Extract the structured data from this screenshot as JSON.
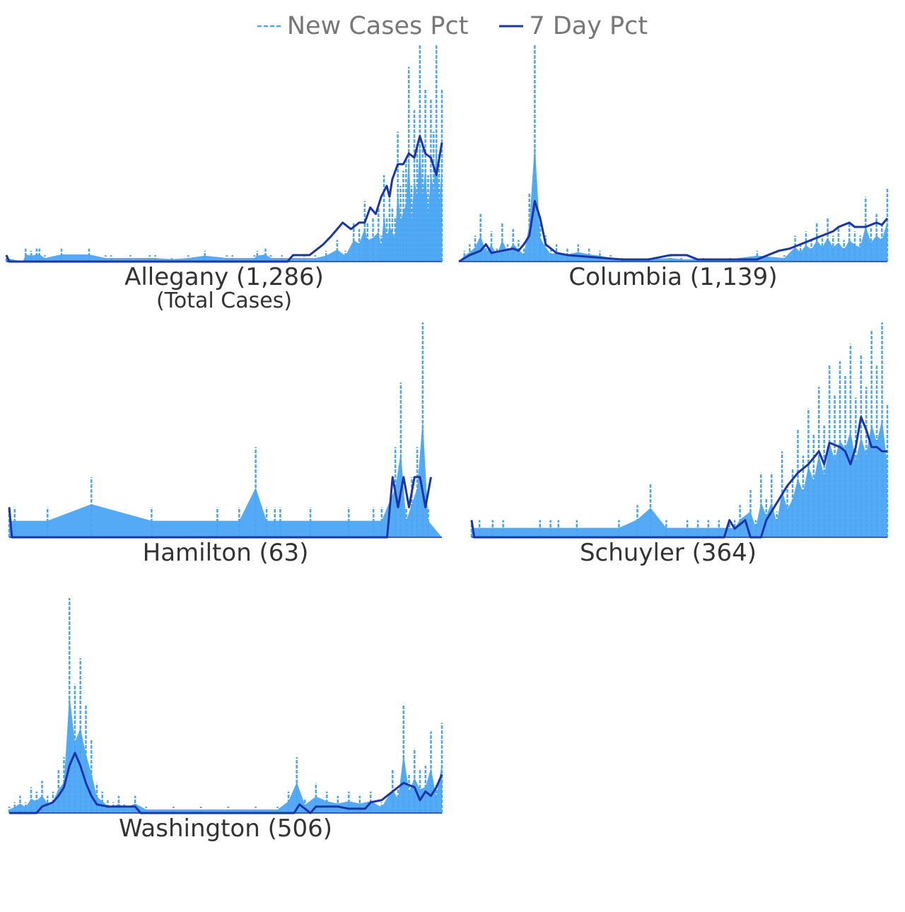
{
  "legend": {
    "new_cases_label": "New Cases Pct",
    "seven_day_label": "7 Day Pct"
  },
  "colors": {
    "new_cases": "#4aa6f0",
    "new_cases_fill": "#55aaf5",
    "seven_day": "#1a35a6",
    "text": "#333333",
    "legend_text": "#777777"
  },
  "chart_data": [
    {
      "type": "area",
      "title": "Allegany (1,286)",
      "subtitle": "(Total Cases)",
      "series": [
        {
          "name": "New Cases Pct"
        },
        {
          "name": "7 Day Pct"
        }
      ],
      "ylim": [
        0,
        100
      ],
      "peaks_new": [
        [
          0,
          3
        ],
        [
          6,
          0
        ],
        [
          7,
          6
        ],
        [
          9,
          5
        ],
        [
          11,
          6
        ],
        [
          12,
          6
        ],
        [
          14,
          3
        ],
        [
          20,
          6
        ],
        [
          30,
          6
        ],
        [
          36,
          3
        ],
        [
          38,
          3
        ],
        [
          45,
          3
        ],
        [
          52,
          3
        ],
        [
          54,
          3
        ],
        [
          60,
          2
        ],
        [
          66,
          3
        ],
        [
          72,
          5
        ],
        [
          80,
          3
        ],
        [
          82,
          3
        ],
        [
          90,
          3
        ],
        [
          91,
          5
        ],
        [
          94,
          6
        ],
        [
          96,
          3
        ],
        [
          100,
          3
        ],
        [
          104,
          3
        ],
        [
          108,
          3
        ],
        [
          112,
          3
        ],
        [
          116,
          5
        ],
        [
          120,
          10
        ],
        [
          123,
          5
        ],
        [
          126,
          18
        ],
        [
          128,
          15
        ],
        [
          130,
          28
        ],
        [
          131,
          18
        ],
        [
          133,
          20
        ],
        [
          135,
          25
        ],
        [
          136,
          12
        ],
        [
          137,
          40
        ],
        [
          138,
          20
        ],
        [
          139,
          30
        ],
        [
          140,
          25
        ],
        [
          141,
          20
        ],
        [
          142,
          60
        ],
        [
          143,
          35
        ],
        [
          144,
          42
        ],
        [
          145,
          48
        ],
        [
          146,
          90
        ],
        [
          147,
          35
        ],
        [
          148,
          70
        ],
        [
          149,
          55
        ],
        [
          150,
          100
        ],
        [
          151,
          55
        ],
        [
          152,
          80
        ],
        [
          153,
          40
        ],
        [
          154,
          75
        ],
        [
          155,
          60
        ],
        [
          156,
          100
        ],
        [
          157,
          50
        ],
        [
          158,
          80
        ]
      ],
      "peaks_7day": [
        [
          0,
          3
        ],
        [
          1,
          0
        ],
        [
          100,
          0
        ],
        [
          102,
          0
        ],
        [
          104,
          3
        ],
        [
          110,
          3
        ],
        [
          115,
          8
        ],
        [
          118,
          12
        ],
        [
          120,
          15
        ],
        [
          122,
          18
        ],
        [
          125,
          15
        ],
        [
          128,
          18
        ],
        [
          130,
          18
        ],
        [
          132,
          25
        ],
        [
          134,
          22
        ],
        [
          136,
          30
        ],
        [
          138,
          35
        ],
        [
          139,
          30
        ],
        [
          140,
          38
        ],
        [
          142,
          45
        ],
        [
          144,
          45
        ],
        [
          146,
          50
        ],
        [
          148,
          48
        ],
        [
          150,
          58
        ],
        [
          152,
          50
        ],
        [
          154,
          48
        ],
        [
          156,
          40
        ],
        [
          158,
          55
        ]
      ]
    },
    {
      "type": "area",
      "title": "Columbia (1,139)",
      "series": [
        {
          "name": "New Cases Pct"
        },
        {
          "name": "7 Day Pct"
        }
      ],
      "ylim": [
        0,
        100
      ],
      "peaks_new": [
        [
          0,
          0
        ],
        [
          2,
          5
        ],
        [
          4,
          8
        ],
        [
          6,
          12
        ],
        [
          8,
          22
        ],
        [
          10,
          8
        ],
        [
          12,
          14
        ],
        [
          14,
          6
        ],
        [
          16,
          18
        ],
        [
          18,
          8
        ],
        [
          20,
          15
        ],
        [
          22,
          10
        ],
        [
          24,
          6
        ],
        [
          26,
          32
        ],
        [
          28,
          100
        ],
        [
          30,
          20
        ],
        [
          32,
          12
        ],
        [
          34,
          6
        ],
        [
          36,
          8
        ],
        [
          40,
          6
        ],
        [
          44,
          8
        ],
        [
          48,
          6
        ],
        [
          52,
          5
        ],
        [
          56,
          3
        ],
        [
          60,
          2
        ],
        [
          70,
          2
        ],
        [
          78,
          3
        ],
        [
          82,
          2
        ],
        [
          90,
          2
        ],
        [
          100,
          2
        ],
        [
          110,
          5
        ],
        [
          120,
          3
        ],
        [
          124,
          12
        ],
        [
          126,
          8
        ],
        [
          128,
          14
        ],
        [
          130,
          10
        ],
        [
          132,
          18
        ],
        [
          134,
          12
        ],
        [
          136,
          20
        ],
        [
          138,
          12
        ],
        [
          140,
          16
        ],
        [
          142,
          10
        ],
        [
          144,
          18
        ],
        [
          146,
          14
        ],
        [
          148,
          12
        ],
        [
          150,
          30
        ],
        [
          152,
          16
        ],
        [
          154,
          22
        ],
        [
          156,
          18
        ],
        [
          158,
          34
        ]
      ],
      "peaks_7day": [
        [
          0,
          0
        ],
        [
          4,
          3
        ],
        [
          8,
          5
        ],
        [
          10,
          8
        ],
        [
          12,
          4
        ],
        [
          16,
          5
        ],
        [
          20,
          6
        ],
        [
          22,
          5
        ],
        [
          24,
          8
        ],
        [
          26,
          12
        ],
        [
          28,
          28
        ],
        [
          30,
          20
        ],
        [
          32,
          8
        ],
        [
          34,
          6
        ],
        [
          36,
          4
        ],
        [
          40,
          3
        ],
        [
          50,
          2
        ],
        [
          60,
          1
        ],
        [
          70,
          1
        ],
        [
          78,
          3
        ],
        [
          84,
          3
        ],
        [
          88,
          1
        ],
        [
          100,
          1
        ],
        [
          110,
          1
        ],
        [
          114,
          3
        ],
        [
          118,
          5
        ],
        [
          122,
          6
        ],
        [
          126,
          8
        ],
        [
          130,
          10
        ],
        [
          134,
          12
        ],
        [
          138,
          14
        ],
        [
          140,
          16
        ],
        [
          144,
          18
        ],
        [
          146,
          16
        ],
        [
          150,
          16
        ],
        [
          154,
          18
        ],
        [
          156,
          17
        ],
        [
          158,
          20
        ]
      ]
    },
    {
      "type": "area",
      "title": "Hamilton (63)",
      "series": [
        {
          "name": "New Cases Pct"
        },
        {
          "name": "7 Day Pct"
        }
      ],
      "ylim": [
        0,
        100
      ],
      "peaks_new": [
        [
          0,
          14
        ],
        [
          2,
          14
        ],
        [
          14,
          14
        ],
        [
          30,
          28
        ],
        [
          52,
          14
        ],
        [
          76,
          14
        ],
        [
          84,
          14
        ],
        [
          90,
          42
        ],
        [
          94,
          14
        ],
        [
          97,
          14
        ],
        [
          99,
          14
        ],
        [
          110,
          14
        ],
        [
          124,
          14
        ],
        [
          133,
          14
        ],
        [
          136,
          14
        ],
        [
          141,
          42
        ],
        [
          143,
          72
        ],
        [
          145,
          14
        ],
        [
          147,
          28
        ],
        [
          149,
          42
        ],
        [
          151,
          100
        ],
        [
          153,
          14
        ]
      ],
      "peaks_7day": [
        [
          0,
          14
        ],
        [
          1,
          0
        ],
        [
          138,
          0
        ],
        [
          140,
          28
        ],
        [
          142,
          14
        ],
        [
          144,
          28
        ],
        [
          146,
          14
        ],
        [
          148,
          28
        ],
        [
          150,
          28
        ],
        [
          152,
          14
        ],
        [
          154,
          28
        ]
      ]
    },
    {
      "type": "area",
      "title": "Schuyler (364)",
      "series": [
        {
          "name": "New Cases Pct"
        },
        {
          "name": "7 Day Pct"
        }
      ],
      "ylim": [
        0,
        100
      ],
      "peaks_new": [
        [
          0,
          8
        ],
        [
          3,
          8
        ],
        [
          8,
          8
        ],
        [
          12,
          8
        ],
        [
          26,
          8
        ],
        [
          30,
          8
        ],
        [
          33,
          8
        ],
        [
          40,
          8
        ],
        [
          56,
          8
        ],
        [
          63,
          15
        ],
        [
          68,
          25
        ],
        [
          74,
          8
        ],
        [
          82,
          8
        ],
        [
          86,
          8
        ],
        [
          90,
          8
        ],
        [
          94,
          8
        ],
        [
          98,
          8
        ],
        [
          100,
          8
        ],
        [
          102,
          15
        ],
        [
          106,
          22
        ],
        [
          108,
          8
        ],
        [
          110,
          30
        ],
        [
          112,
          18
        ],
        [
          114,
          30
        ],
        [
          116,
          12
        ],
        [
          118,
          40
        ],
        [
          120,
          24
        ],
        [
          122,
          32
        ],
        [
          124,
          50
        ],
        [
          126,
          38
        ],
        [
          128,
          60
        ],
        [
          130,
          48
        ],
        [
          132,
          70
        ],
        [
          134,
          52
        ],
        [
          136,
          80
        ],
        [
          138,
          66
        ],
        [
          140,
          82
        ],
        [
          142,
          75
        ],
        [
          144,
          90
        ],
        [
          146,
          65
        ],
        [
          148,
          85
        ],
        [
          150,
          70
        ],
        [
          152,
          96
        ],
        [
          154,
          80
        ],
        [
          156,
          100
        ],
        [
          158,
          62
        ]
      ],
      "peaks_7day": [
        [
          0,
          8
        ],
        [
          1,
          0
        ],
        [
          96,
          0
        ],
        [
          98,
          8
        ],
        [
          100,
          4
        ],
        [
          104,
          8
        ],
        [
          106,
          0
        ],
        [
          110,
          0
        ],
        [
          112,
          8
        ],
        [
          116,
          16
        ],
        [
          120,
          24
        ],
        [
          124,
          30
        ],
        [
          128,
          34
        ],
        [
          132,
          40
        ],
        [
          134,
          34
        ],
        [
          136,
          44
        ],
        [
          140,
          42
        ],
        [
          142,
          40
        ],
        [
          144,
          34
        ],
        [
          146,
          42
        ],
        [
          148,
          56
        ],
        [
          150,
          50
        ],
        [
          152,
          42
        ],
        [
          154,
          42
        ],
        [
          156,
          40
        ],
        [
          158,
          40
        ]
      ]
    },
    {
      "type": "area",
      "title": "Washington (506)",
      "series": [
        {
          "name": "New Cases Pct"
        },
        {
          "name": "7 Day Pct"
        }
      ],
      "ylim": [
        0,
        100
      ],
      "peaks_new": [
        [
          0,
          3
        ],
        [
          2,
          5
        ],
        [
          4,
          8
        ],
        [
          6,
          5
        ],
        [
          8,
          12
        ],
        [
          10,
          10
        ],
        [
          12,
          15
        ],
        [
          14,
          8
        ],
        [
          16,
          10
        ],
        [
          18,
          20
        ],
        [
          20,
          26
        ],
        [
          22,
          100
        ],
        [
          24,
          60
        ],
        [
          26,
          72
        ],
        [
          28,
          50
        ],
        [
          30,
          34
        ],
        [
          32,
          14
        ],
        [
          34,
          10
        ],
        [
          36,
          6
        ],
        [
          38,
          5
        ],
        [
          40,
          8
        ],
        [
          42,
          4
        ],
        [
          46,
          8
        ],
        [
          50,
          3
        ],
        [
          60,
          3
        ],
        [
          70,
          3
        ],
        [
          80,
          3
        ],
        [
          90,
          3
        ],
        [
          98,
          3
        ],
        [
          102,
          10
        ],
        [
          105,
          26
        ],
        [
          108,
          7
        ],
        [
          112,
          14
        ],
        [
          116,
          10
        ],
        [
          120,
          8
        ],
        [
          124,
          10
        ],
        [
          128,
          8
        ],
        [
          132,
          10
        ],
        [
          136,
          5
        ],
        [
          140,
          20
        ],
        [
          142,
          12
        ],
        [
          144,
          50
        ],
        [
          146,
          18
        ],
        [
          148,
          30
        ],
        [
          150,
          20
        ],
        [
          152,
          22
        ],
        [
          154,
          38
        ],
        [
          156,
          14
        ],
        [
          158,
          42
        ]
      ],
      "peaks_7day": [
        [
          0,
          0
        ],
        [
          10,
          0
        ],
        [
          12,
          3
        ],
        [
          16,
          5
        ],
        [
          18,
          8
        ],
        [
          20,
          12
        ],
        [
          22,
          22
        ],
        [
          24,
          28
        ],
        [
          26,
          22
        ],
        [
          28,
          14
        ],
        [
          30,
          8
        ],
        [
          32,
          4
        ],
        [
          36,
          3
        ],
        [
          46,
          3
        ],
        [
          48,
          0
        ],
        [
          104,
          0
        ],
        [
          106,
          4
        ],
        [
          108,
          2
        ],
        [
          110,
          0
        ],
        [
          112,
          3
        ],
        [
          120,
          3
        ],
        [
          124,
          2
        ],
        [
          130,
          2
        ],
        [
          132,
          5
        ],
        [
          136,
          6
        ],
        [
          140,
          10
        ],
        [
          144,
          14
        ],
        [
          148,
          12
        ],
        [
          150,
          6
        ],
        [
          152,
          10
        ],
        [
          154,
          8
        ],
        [
          156,
          12
        ],
        [
          158,
          18
        ]
      ]
    }
  ]
}
